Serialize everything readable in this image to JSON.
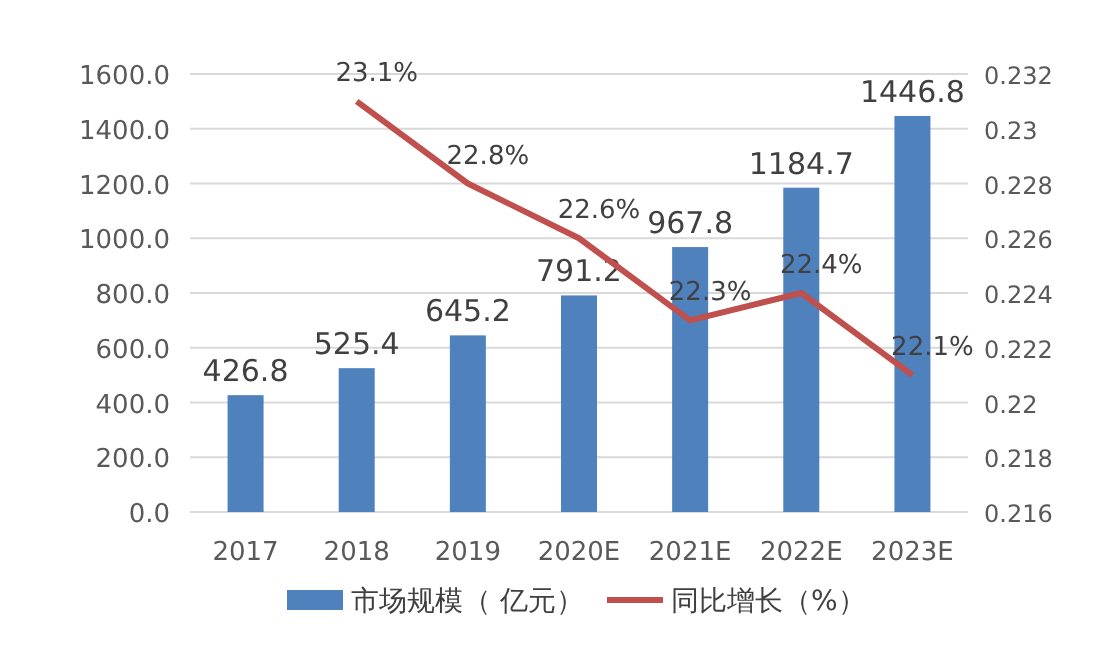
{
  "chart_data": {
    "type": "bar",
    "categories": [
      "2017",
      "2018",
      "2019",
      "2020E",
      "2021E",
      "2022E",
      "2023E"
    ],
    "series": [
      {
        "name": "市场规模（ 亿元）",
        "color": "#4f81bd",
        "values": [
          426.8,
          525.4,
          645.2,
          791.2,
          967.8,
          1184.7,
          1446.8
        ],
        "value_labels": [
          "426.8",
          "525.4",
          "645.2",
          "791.2",
          "967.8",
          "1184.7",
          "1446.8"
        ]
      },
      {
        "name": "同比增长（%）",
        "type": "line",
        "axis": "y2",
        "color": "#c0504d",
        "values": [
          null,
          0.231,
          0.228,
          0.226,
          0.223,
          0.224,
          0.221
        ],
        "value_labels": [
          null,
          "23.1%",
          "22.8%",
          "22.6%",
          "22.3%",
          "22.4%",
          "22.1%"
        ]
      }
    ],
    "ylim": [
      0,
      1600
    ],
    "yticks": [
      {
        "value": 0,
        "label": "0.0"
      },
      {
        "value": 200,
        "label": "200.0"
      },
      {
        "value": 400,
        "label": "400.0"
      },
      {
        "value": 600,
        "label": "600.0"
      },
      {
        "value": 800,
        "label": "800.0"
      },
      {
        "value": 1000,
        "label": "1000.0"
      },
      {
        "value": 1200,
        "label": "1200.0"
      },
      {
        "value": 1400,
        "label": "1400.0"
      },
      {
        "value": 1600,
        "label": "1600.0"
      }
    ],
    "y2lim": [
      0.216,
      0.232
    ],
    "y2ticks": [
      0.216,
      0.218,
      0.22,
      0.222,
      0.224,
      0.226,
      0.228,
      0.23,
      0.232
    ],
    "grid": "y",
    "legend": "bottom"
  }
}
